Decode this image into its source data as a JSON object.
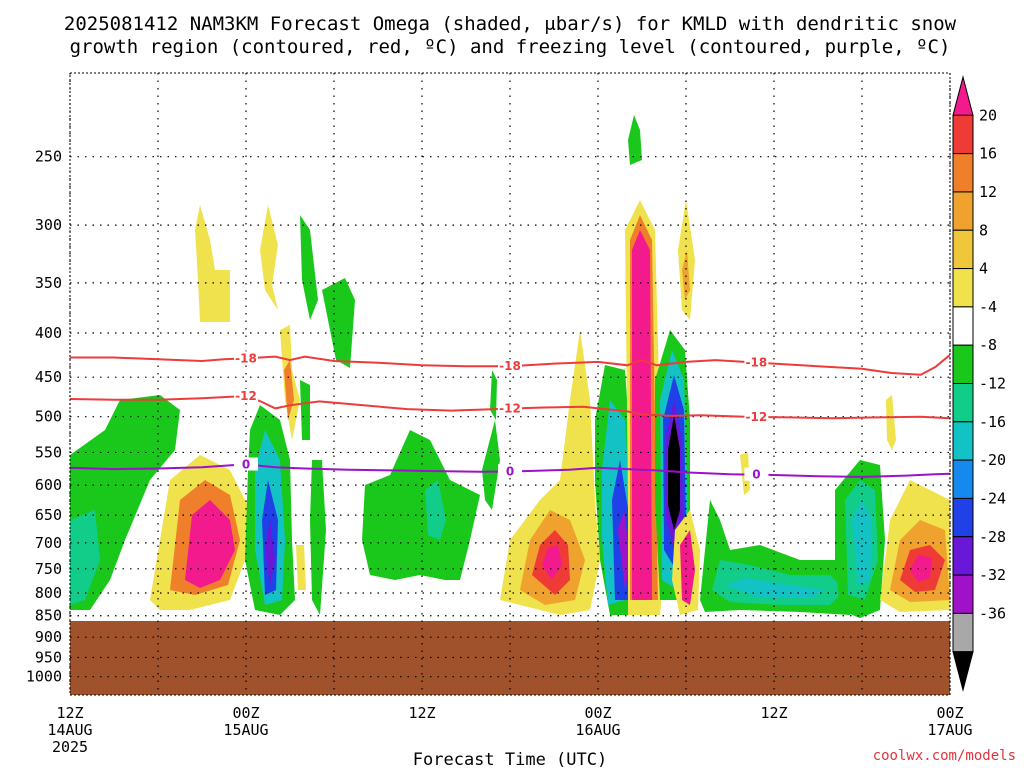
{
  "title": {
    "line1": "2025081412 NAM3KM Forecast Omega (shaded, μbar/s) for KMLD with dendritic snow",
    "line2": "growth region (contoured, red, ºC) and freezing level (contoured, purple, ºC)"
  },
  "credit": "coolwx.com/models",
  "chart_data": {
    "type": "heatmap",
    "title": "2025081412 NAM3KM Forecast Omega (shaded, μbar/s) for KMLD with dendritic snow growth region (contoured, red, ºC) and freezing level (contoured, purple, ºC)",
    "xlabel": "Forecast Time (UTC)",
    "ylabel": "",
    "x_ticks": [
      {
        "h": 0,
        "lines": [
          "12Z",
          "14AUG",
          "2025"
        ]
      },
      {
        "h": 12,
        "lines": [
          "00Z",
          "15AUG"
        ]
      },
      {
        "h": 24,
        "lines": [
          "12Z"
        ]
      },
      {
        "h": 36,
        "lines": [
          "00Z",
          "16AUG"
        ]
      },
      {
        "h": 48,
        "lines": [
          "12Z"
        ]
      },
      {
        "h": 60,
        "lines": [
          "00Z",
          "17AUG"
        ]
      }
    ],
    "xlim": [
      "2025-08-14 12Z",
      "2025-08-17 00Z"
    ],
    "y_ticks": [
      250,
      300,
      350,
      400,
      450,
      500,
      550,
      600,
      650,
      700,
      750,
      800,
      850,
      900,
      950,
      1000
    ],
    "ylim": [
      200,
      1050
    ],
    "y_scale": "log pressure (hPa)",
    "grid": true,
    "colorbar": {
      "labels": [
        20,
        16,
        12,
        8,
        4,
        -4,
        -8,
        -12,
        -16,
        -20,
        -24,
        -28,
        -32,
        -36
      ],
      "colors": [
        "#f21a8c",
        "#ef3b35",
        "#f07f2c",
        "#efa22e",
        "#f0c63a",
        "#f0e24c",
        "#ffffff",
        "#19c81b",
        "#12cc8a",
        "#13c2c4",
        "#1589ee",
        "#2040e8",
        "#6a18d8",
        "#a012c8",
        "#a8a8a8",
        "#000000"
      ]
    },
    "contours": [
      {
        "name": "-18",
        "color": "#ee3b3b",
        "points": [
          [
            0,
            427
          ],
          [
            3,
            427
          ],
          [
            6,
            429
          ],
          [
            9,
            431
          ],
          [
            10.5,
            429
          ],
          [
            12,
            428
          ],
          [
            14,
            426
          ],
          [
            15,
            430
          ],
          [
            16,
            426
          ],
          [
            18,
            431
          ],
          [
            21,
            433
          ],
          [
            24,
            436
          ],
          [
            27,
            437
          ],
          [
            30,
            437
          ],
          [
            33,
            434
          ],
          [
            36,
            432
          ],
          [
            38,
            436
          ],
          [
            39,
            430
          ],
          [
            40,
            436
          ],
          [
            42,
            432
          ],
          [
            44,
            430
          ],
          [
            46,
            432
          ],
          [
            48,
            434
          ],
          [
            51,
            437
          ],
          [
            54,
            440
          ],
          [
            56,
            445
          ],
          [
            58,
            447
          ],
          [
            59,
            438
          ],
          [
            60,
            424
          ]
        ]
      },
      {
        "name": "-12",
        "color": "#ee3b3b",
        "points": [
          [
            0,
            477
          ],
          [
            3,
            478
          ],
          [
            6,
            478
          ],
          [
            9,
            476
          ],
          [
            11,
            474
          ],
          [
            12,
            473
          ],
          [
            13,
            480
          ],
          [
            14,
            489
          ],
          [
            15,
            485
          ],
          [
            17,
            480
          ],
          [
            20,
            485
          ],
          [
            23,
            490
          ],
          [
            26,
            492
          ],
          [
            29,
            490
          ],
          [
            32,
            488
          ],
          [
            35,
            487
          ],
          [
            37,
            491
          ],
          [
            38,
            493
          ],
          [
            39,
            497
          ],
          [
            41,
            499
          ],
          [
            43,
            498
          ],
          [
            46,
            500
          ],
          [
            49,
            501
          ],
          [
            52,
            502
          ],
          [
            55,
            501
          ],
          [
            58,
            500
          ],
          [
            60,
            502
          ]
        ]
      },
      {
        "name": "0",
        "color": "#9b12c8",
        "points": [
          [
            0,
            573
          ],
          [
            3,
            575
          ],
          [
            6,
            574
          ],
          [
            9,
            572
          ],
          [
            11,
            569
          ],
          [
            12,
            568
          ],
          [
            14,
            572
          ],
          [
            16,
            574
          ],
          [
            19,
            576
          ],
          [
            22,
            577
          ],
          [
            25,
            578
          ],
          [
            28,
            579
          ],
          [
            31,
            578
          ],
          [
            34,
            576
          ],
          [
            36,
            573
          ],
          [
            38,
            575
          ],
          [
            40,
            577
          ],
          [
            42,
            580
          ],
          [
            45,
            583
          ],
          [
            48,
            584
          ],
          [
            51,
            586
          ],
          [
            54,
            587
          ],
          [
            57,
            585
          ],
          [
            59,
            583
          ],
          [
            60,
            582
          ]
        ]
      }
    ],
    "terrain": {
      "color": "#a0522d",
      "top_hpa": 862
    }
  }
}
